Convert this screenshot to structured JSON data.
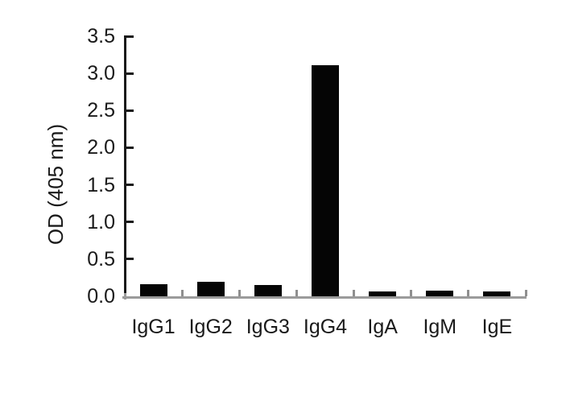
{
  "chart_data": {
    "type": "bar",
    "title": "",
    "categories": [
      "IgG1",
      "IgG2",
      "IgG3",
      "IgG4",
      "IgA",
      "IgM",
      "IgE"
    ],
    "values": [
      0.16,
      0.19,
      0.15,
      3.11,
      0.07,
      0.08,
      0.06
    ],
    "series_name": "OD (405 nm)",
    "xlabel": "",
    "ylabel": "OD (405 nm)",
    "ylim": [
      0,
      3.5
    ],
    "ytick_values": [
      0,
      0.5,
      1.0,
      1.5,
      2.0,
      2.5,
      3.0,
      3.5
    ],
    "ytick_labels": [
      "0.0",
      "0.5",
      "1.0",
      "1.5",
      "2.0",
      "2.5",
      "3.0",
      "3.5"
    ],
    "grid": false,
    "legend": "none"
  },
  "colors": {
    "background": "#ffffff",
    "bar": "#050505",
    "axis": "#1a1a1a",
    "text": "#1a1a1a",
    "x_baseline": "#9b9b9b",
    "x_boundary_tick": "#8f8f8f"
  }
}
